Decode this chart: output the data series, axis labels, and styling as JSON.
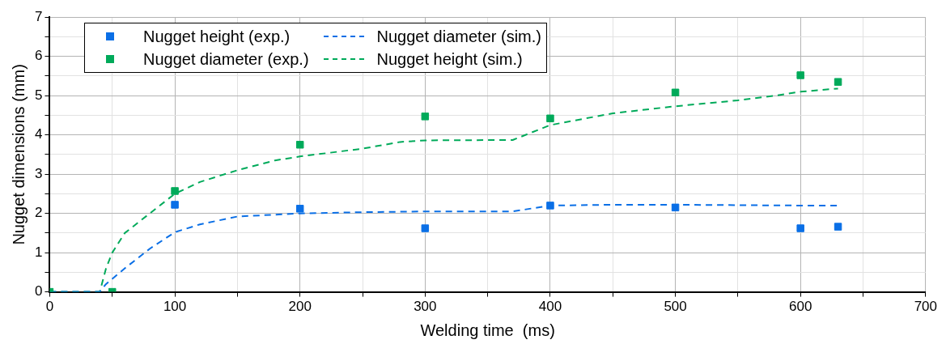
{
  "chart_data": {
    "type": "scatter",
    "xlabel": "Welding time  (ms)",
    "ylabel": "Nugget dimensions (mm)",
    "xlim": [
      0,
      700
    ],
    "xticks": [
      0,
      {
        "value": 50,
        "label": null
      },
      100,
      {
        "value": 150,
        "label": null
      },
      200,
      {
        "value": 250,
        "label": null
      },
      300,
      {
        "value": 350,
        "label": null
      },
      400,
      {
        "value": 450,
        "label": null
      },
      500,
      {
        "value": 550,
        "label": null
      },
      600,
      {
        "value": 650,
        "label": null
      },
      700
    ],
    "ylim": [
      0,
      7
    ],
    "yticks": [
      0,
      {
        "value": 0.5,
        "label": null
      },
      1,
      {
        "value": 1.5,
        "label": null
      },
      2,
      {
        "value": 2.5,
        "label": null
      },
      3,
      {
        "value": 3.5,
        "label": null
      },
      4,
      {
        "value": 4.5,
        "label": null
      },
      5,
      {
        "value": 5.5,
        "label": null
      },
      6,
      {
        "value": 6.5,
        "label": null
      },
      7
    ],
    "grid": true,
    "legend": "top left",
    "marker": "square",
    "series": [
      {
        "name": "Nugget height (exp.)",
        "color": "#0a6fe6",
        "x": [
          100,
          200,
          300,
          400,
          500,
          600,
          630
        ],
        "values": [
          2.22,
          2.12,
          1.62,
          2.2,
          2.15,
          1.62,
          1.66
        ]
      },
      {
        "name": "Nugget diameter (sim.)",
        "type": "line",
        "line_style": "dashed",
        "marker": "none",
        "color": "#0a6fe6",
        "x": [
          0,
          40,
          45,
          60,
          80,
          100,
          120,
          150,
          200,
          250,
          300,
          370,
          400,
          450,
          500,
          550,
          600,
          630
        ],
        "values": [
          0,
          0,
          0.2,
          0.6,
          1.1,
          1.52,
          1.72,
          1.92,
          2.0,
          2.03,
          2.05,
          2.05,
          2.2,
          2.22,
          2.22,
          2.21,
          2.2,
          2.2
        ]
      },
      {
        "name": "Nugget diameter (exp.)",
        "color": "#00aa5a",
        "x": [
          0,
          50,
          100,
          200,
          300,
          400,
          500,
          600,
          630
        ],
        "values": [
          0,
          0,
          2.57,
          3.75,
          4.47,
          4.42,
          5.08,
          5.52,
          5.35
        ]
      },
      {
        "name": "Nugget height (sim.)",
        "type": "line",
        "line_style": "dashed",
        "marker": "none",
        "color": "#00aa5a",
        "x": [
          0,
          40,
          45,
          50,
          60,
          80,
          100,
          120,
          150,
          180,
          200,
          250,
          280,
          300,
          370,
          400,
          450,
          500,
          550,
          580,
          600,
          630
        ],
        "values": [
          0,
          0,
          0.6,
          1.0,
          1.5,
          2.0,
          2.5,
          2.8,
          3.1,
          3.35,
          3.45,
          3.65,
          3.82,
          3.86,
          3.87,
          4.25,
          4.55,
          4.73,
          4.88,
          5.0,
          5.1,
          5.18
        ]
      }
    ]
  }
}
